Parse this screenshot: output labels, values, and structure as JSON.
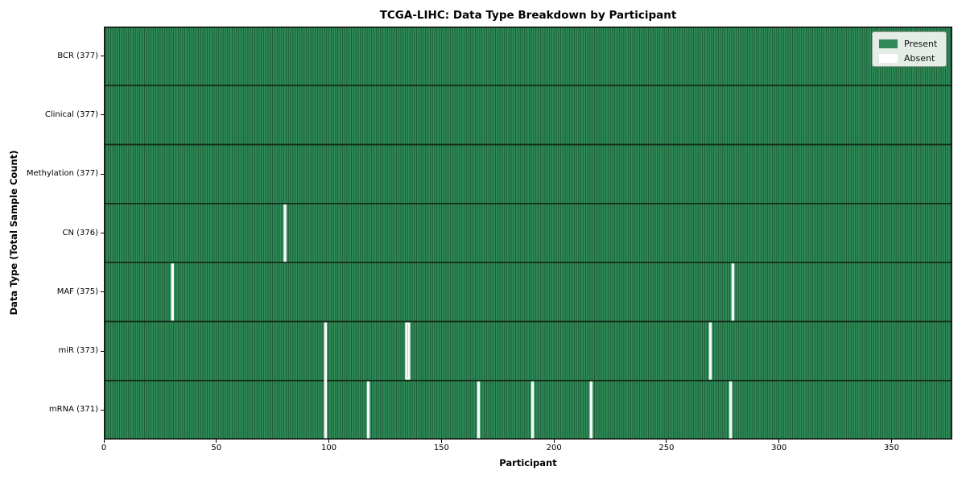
{
  "chart_data": {
    "type": "heatmap",
    "title": "TCGA-LIHC: Data Type Breakdown by Participant",
    "xlabel": "Participant",
    "ylabel": "Data Type (Total Sample Count)",
    "n_participants": 377,
    "xlim": [
      0,
      377
    ],
    "x_ticks": [
      0,
      50,
      100,
      150,
      200,
      250,
      300,
      350
    ],
    "grid": false,
    "rows": [
      {
        "label": "BCR (377)",
        "name": "BCR",
        "present_count": 377,
        "absent_participants": []
      },
      {
        "label": "Clinical (377)",
        "name": "Clinical",
        "present_count": 377,
        "absent_participants": []
      },
      {
        "label": "Methylation (377)",
        "name": "Methylation",
        "present_count": 377,
        "absent_participants": []
      },
      {
        "label": "CN (376)",
        "name": "CN",
        "present_count": 376,
        "absent_participants": [
          80
        ]
      },
      {
        "label": "MAF (375)",
        "name": "MAF",
        "present_count": 375,
        "absent_participants": [
          30,
          279
        ]
      },
      {
        "label": "miR (373)",
        "name": "miR",
        "present_count": 373,
        "absent_participants": [
          98,
          134,
          135,
          269
        ]
      },
      {
        "label": "mRNA (371)",
        "name": "mRNA",
        "present_count": 371,
        "absent_participants": [
          98,
          117,
          166,
          190,
          216,
          278
        ]
      }
    ],
    "legend": {
      "position": "upper right",
      "entries": [
        {
          "label": "Present",
          "color": "#2e8b57"
        },
        {
          "label": "Absent",
          "color": "#ffffff"
        }
      ]
    },
    "colors": {
      "present": "#2e8b57",
      "absent": "#fafafa",
      "cell_edge": "#0a2814",
      "row_separator": "#142314",
      "absent_divider": "#b7beb7",
      "plot_border": "#111111"
    }
  }
}
